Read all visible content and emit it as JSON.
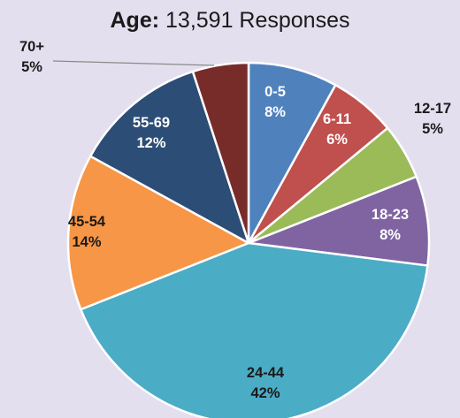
{
  "title": {
    "bold": "Age:",
    "rest": " 13,591 Responses"
  },
  "chart_data": {
    "type": "pie",
    "title": "Age: 13,591 Responses",
    "total_responses": 13591,
    "slices": [
      {
        "label": "0-5",
        "value": 8,
        "value_text": "8%",
        "color": "#4f81bd",
        "label_inside": true,
        "label_color": "#ffffff"
      },
      {
        "label": "6-11",
        "value": 6,
        "value_text": "6%",
        "color": "#c0504d",
        "label_inside": true,
        "label_color": "#ffffff"
      },
      {
        "label": "12-17",
        "value": 5,
        "value_text": "5%",
        "color": "#9bbb59",
        "label_inside": false,
        "label_color": "#1a1a1a"
      },
      {
        "label": "18-23",
        "value": 8,
        "value_text": "8%",
        "color": "#8064a2",
        "label_inside": true,
        "label_color": "#ffffff"
      },
      {
        "label": "24-44",
        "value": 42,
        "value_text": "42%",
        "color": "#4bacc6",
        "label_inside": true,
        "label_color": "#1a1a1a"
      },
      {
        "label": "45-54",
        "value": 14,
        "value_text": "14%",
        "color": "#f79646",
        "label_inside": true,
        "label_color": "#1a1a1a"
      },
      {
        "label": "55-69",
        "value": 12,
        "value_text": "12%",
        "color": "#2c4d75",
        "label_inside": true,
        "label_color": "#ffffff"
      },
      {
        "label": "70+",
        "value": 5,
        "value_text": "5%",
        "color": "#772c2a",
        "label_inside": false,
        "label_color": "#1a1a1a"
      }
    ],
    "start": "12 o'clock",
    "direction": "clockwise",
    "slice_border": "#ffffff"
  }
}
